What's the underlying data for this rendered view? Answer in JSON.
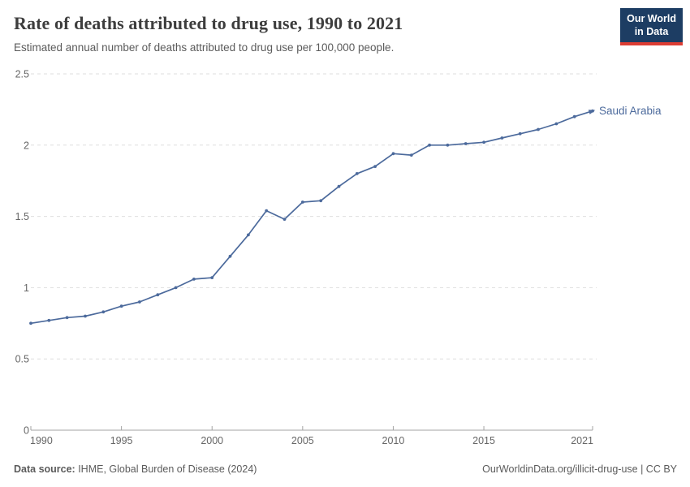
{
  "header": {
    "title": "Rate of deaths attributed to drug use, 1990 to 2021",
    "subtitle": "Estimated annual number of deaths attributed to drug use per 100,000 people.",
    "logo": {
      "line1": "Our World",
      "line2": "in Data",
      "bg_color": "#1d3d63",
      "accent_color": "#dc3d33"
    }
  },
  "chart_data": {
    "type": "line",
    "title": "Rate of deaths attributed to drug use, 1990 to 2021",
    "x": [
      1990,
      1991,
      1992,
      1993,
      1994,
      1995,
      1996,
      1997,
      1998,
      1999,
      2000,
      2001,
      2002,
      2003,
      2004,
      2005,
      2006,
      2007,
      2008,
      2009,
      2010,
      2011,
      2012,
      2013,
      2014,
      2015,
      2016,
      2017,
      2018,
      2019,
      2020,
      2021
    ],
    "series": [
      {
        "name": "Saudi Arabia",
        "color": "#4c6a9c",
        "values": [
          0.75,
          0.77,
          0.79,
          0.8,
          0.83,
          0.87,
          0.9,
          0.95,
          1.0,
          1.06,
          1.07,
          1.22,
          1.37,
          1.54,
          1.48,
          1.6,
          1.61,
          1.71,
          1.8,
          1.85,
          1.94,
          1.93,
          2.0,
          2.0,
          2.01,
          2.02,
          2.05,
          2.08,
          2.11,
          2.15,
          2.2,
          2.24
        ]
      }
    ],
    "xlabel": "",
    "ylabel": "",
    "xlim": [
      1990,
      2021
    ],
    "ylim": [
      0,
      2.5
    ],
    "x_tick_values": [
      1990,
      1995,
      2000,
      2005,
      2010,
      2015,
      2021
    ],
    "x_tick_labels": [
      "1990",
      "1995",
      "2000",
      "2005",
      "2010",
      "2015",
      "2021"
    ],
    "y_tick_values": [
      0,
      0.5,
      1,
      1.5,
      2,
      2.5
    ],
    "y_tick_labels": [
      "0",
      "0.5",
      "1",
      "1.5",
      "2",
      "2.5"
    ],
    "grid": "horizontal-dashed",
    "legend_position": "line-end-label",
    "colors": {
      "grid": "#dedede",
      "axis": "#a3a3a3",
      "tick_text": "#666666"
    }
  },
  "footer": {
    "datasource_label": "Data source:",
    "datasource_value": " IHME, Global Burden of Disease (2024)",
    "attribution": "OurWorldinData.org/illicit-drug-use | CC BY"
  }
}
